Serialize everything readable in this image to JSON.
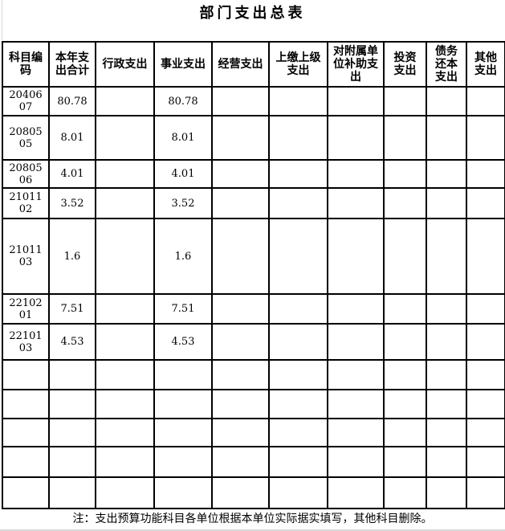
{
  "title": "部门支出总表",
  "table": {
    "columns": [
      {
        "label": "科目编码"
      },
      {
        "label": "本年支出合计"
      },
      {
        "label": "行政支出"
      },
      {
        "label": "事业支出"
      },
      {
        "label": "经营支出"
      },
      {
        "label": "上缴上级支出"
      },
      {
        "label": "对附属单位补助支出"
      },
      {
        "label": "投资支出"
      },
      {
        "label": "债务还本支出"
      },
      {
        "label": "其他支出"
      }
    ],
    "rows": [
      {
        "cells": [
          "2040607",
          "80.78",
          "",
          "80.78",
          "",
          "",
          "",
          "",
          "",
          ""
        ]
      },
      {
        "cells": [
          "2080505",
          "8.01",
          "",
          "8.01",
          "",
          "",
          "",
          "",
          "",
          ""
        ]
      },
      {
        "cells": [
          "2080506",
          "4.01",
          "",
          "4.01",
          "",
          "",
          "",
          "",
          "",
          ""
        ]
      },
      {
        "cells": [
          "2101102",
          "3.52",
          "",
          "3.52",
          "",
          "",
          "",
          "",
          "",
          ""
        ]
      },
      {
        "cells": [
          "2101103",
          "1.6",
          "",
          "1.6",
          "",
          "",
          "",
          "",
          "",
          ""
        ]
      },
      {
        "cells": [
          "2210201",
          "7.51",
          "",
          "7.51",
          "",
          "",
          "",
          "",
          "",
          ""
        ]
      },
      {
        "cells": [
          "2210103",
          "4.53",
          "",
          "4.53",
          "",
          "",
          "",
          "",
          "",
          ""
        ]
      },
      {
        "cells": [
          "",
          "",
          "",
          "",
          "",
          "",
          "",
          "",
          "",
          ""
        ]
      },
      {
        "cells": [
          "",
          "",
          "",
          "",
          "",
          "",
          "",
          "",
          "",
          ""
        ]
      },
      {
        "cells": [
          "",
          "",
          "",
          "",
          "",
          "",
          "",
          "",
          "",
          ""
        ]
      },
      {
        "cells": [
          "",
          "",
          "",
          "",
          "",
          "",
          "",
          "",
          "",
          ""
        ]
      },
      {
        "cells": [
          "",
          "",
          "",
          "",
          "",
          "",
          "",
          "",
          "",
          ""
        ]
      }
    ]
  },
  "note": "注：支出预算功能科目各单位根据本单位实际据实填写，其他科目删除。"
}
